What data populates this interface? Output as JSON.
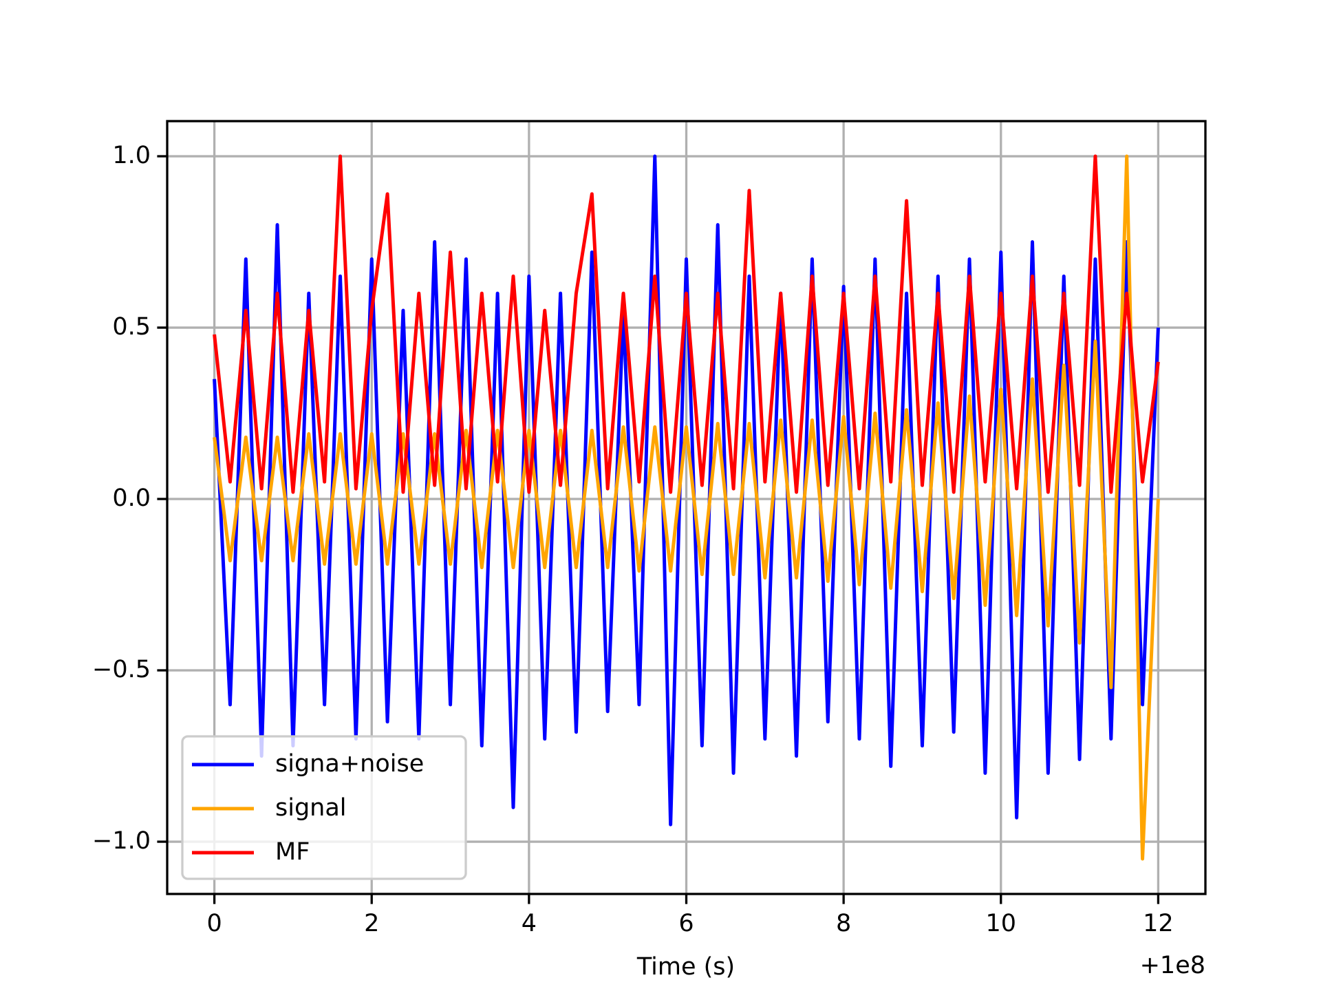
{
  "chart_data": {
    "type": "line",
    "xlabel": "Time (s)",
    "x_offset_label": "+1e8",
    "x": [
      0,
      0.2,
      0.4,
      0.6,
      0.8,
      1.0,
      1.2,
      1.4,
      1.6,
      1.8,
      2.0,
      2.2,
      2.4,
      2.6,
      2.8,
      3.0,
      3.2,
      3.4,
      3.6,
      3.8,
      4.0,
      4.2,
      4.4,
      4.6,
      4.8,
      5.0,
      5.2,
      5.4,
      5.6,
      5.8,
      6.0,
      6.2,
      6.4,
      6.6,
      6.8,
      7.0,
      7.2,
      7.4,
      7.6,
      7.8,
      8.0,
      8.2,
      8.4,
      8.6,
      8.8,
      9.0,
      9.2,
      9.4,
      9.6,
      9.8,
      10.0,
      10.2,
      10.4,
      10.6,
      10.8,
      11.0,
      11.2,
      11.4,
      11.6,
      11.8,
      12.0
    ],
    "series": [
      {
        "name": "signa+noise",
        "color": "#0000ff",
        "values": [
          0.35,
          -0.6,
          0.7,
          -0.75,
          0.8,
          -0.72,
          0.6,
          -0.6,
          0.65,
          -0.7,
          0.7,
          -0.65,
          0.55,
          -0.7,
          0.75,
          -0.6,
          0.7,
          -0.72,
          0.6,
          -0.9,
          0.65,
          -0.7,
          0.6,
          -0.68,
          0.72,
          -0.62,
          0.55,
          -0.6,
          1.0,
          -0.95,
          0.7,
          -0.72,
          0.8,
          -0.8,
          0.65,
          -0.7,
          0.6,
          -0.75,
          0.7,
          -0.65,
          0.62,
          -0.7,
          0.7,
          -0.78,
          0.6,
          -0.72,
          0.65,
          -0.68,
          0.7,
          -0.8,
          0.72,
          -0.93,
          0.75,
          -0.8,
          0.65,
          -0.76,
          0.7,
          -0.7,
          0.75,
          -0.6,
          0.5
        ]
      },
      {
        "name": "signal",
        "color": "#ffa500",
        "values": [
          0.18,
          -0.18,
          0.18,
          -0.18,
          0.18,
          -0.18,
          0.19,
          -0.19,
          0.19,
          -0.19,
          0.19,
          -0.19,
          0.19,
          -0.19,
          0.19,
          -0.19,
          0.2,
          -0.2,
          0.2,
          -0.2,
          0.2,
          -0.2,
          0.2,
          -0.2,
          0.2,
          -0.2,
          0.21,
          -0.21,
          0.21,
          -0.21,
          0.21,
          -0.22,
          0.22,
          -0.22,
          0.22,
          -0.23,
          0.23,
          -0.23,
          0.23,
          -0.24,
          0.24,
          -0.25,
          0.25,
          -0.26,
          0.26,
          -0.27,
          0.28,
          -0.29,
          0.3,
          -0.31,
          0.32,
          -0.34,
          0.35,
          -0.37,
          0.39,
          -0.42,
          0.46,
          -0.55,
          1.0,
          -1.05,
          0
        ]
      },
      {
        "name": "MF",
        "color": "#ff0000",
        "values": [
          0.48,
          0.05,
          0.55,
          0.03,
          0.6,
          0.02,
          0.55,
          0.05,
          1.0,
          0.03,
          0.55,
          0.89,
          0.02,
          0.6,
          0.04,
          0.72,
          0.03,
          0.6,
          0.05,
          0.65,
          0.02,
          0.55,
          0.04,
          0.6,
          0.89,
          0.03,
          0.6,
          0.05,
          0.65,
          0.02,
          0.6,
          0.04,
          0.6,
          0.03,
          0.9,
          0.05,
          0.6,
          0.02,
          0.65,
          0.04,
          0.6,
          0.03,
          0.65,
          0.05,
          0.87,
          0.04,
          0.6,
          0.02,
          0.65,
          0.05,
          0.6,
          0.03,
          0.65,
          0.02,
          0.6,
          0.04,
          1.0,
          0.02,
          0.6,
          0.05,
          0.4
        ]
      }
    ],
    "xlim": [
      -0.6,
      12.6
    ],
    "xticks": [
      0,
      2,
      4,
      6,
      8,
      10,
      12
    ],
    "ylim": [
      -1.1525,
      1.1025
    ],
    "yticks": [
      {
        "value": -1,
        "label": "−1.0"
      },
      {
        "value": -0.5,
        "label": "−0.5"
      },
      {
        "value": 0,
        "label": "0.0"
      },
      {
        "value": 0.5,
        "label": "0.5"
      },
      {
        "value": 1,
        "label": "1.0"
      }
    ],
    "grid": true,
    "legend": "lower left"
  }
}
